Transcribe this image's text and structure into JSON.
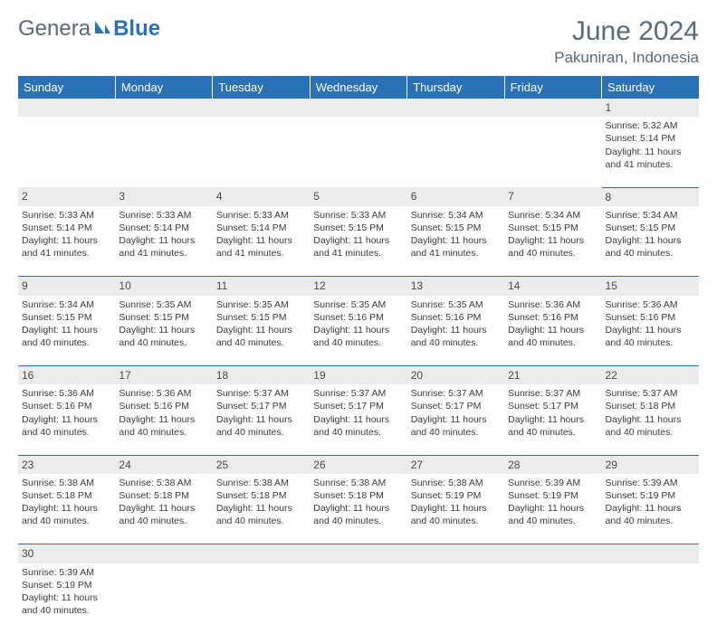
{
  "logo": {
    "text_gray": "Genera",
    "text_blue": "Blue"
  },
  "title": "June 2024",
  "location": "Pakuniran, Indonesia",
  "colors": {
    "header_bg": "#2a72b5",
    "header_text": "#ffffff",
    "daynum_bg": "#ececec",
    "text": "#3a3a3a",
    "title_text": "#5a6a78",
    "cell_border": "#2a72b5",
    "page_bg": "#ffffff"
  },
  "typography": {
    "title_fontsize": 30,
    "location_fontsize": 17,
    "dayhead_fontsize": 13,
    "cell_fontsize": 10.5
  },
  "day_headers": [
    "Sunday",
    "Monday",
    "Tuesday",
    "Wednesday",
    "Thursday",
    "Friday",
    "Saturday"
  ],
  "labels": {
    "sunrise_prefix": "Sunrise: ",
    "sunset_prefix": "Sunset: ",
    "daylight_prefix": "Daylight: "
  },
  "weeks": [
    [
      null,
      null,
      null,
      null,
      null,
      null,
      {
        "n": 1,
        "sunrise": "5:32 AM",
        "sunset": "5:14 PM",
        "daylight": "11 hours and 41 minutes."
      }
    ],
    [
      {
        "n": 2,
        "sunrise": "5:33 AM",
        "sunset": "5:14 PM",
        "daylight": "11 hours and 41 minutes."
      },
      {
        "n": 3,
        "sunrise": "5:33 AM",
        "sunset": "5:14 PM",
        "daylight": "11 hours and 41 minutes."
      },
      {
        "n": 4,
        "sunrise": "5:33 AM",
        "sunset": "5:14 PM",
        "daylight": "11 hours and 41 minutes."
      },
      {
        "n": 5,
        "sunrise": "5:33 AM",
        "sunset": "5:15 PM",
        "daylight": "11 hours and 41 minutes."
      },
      {
        "n": 6,
        "sunrise": "5:34 AM",
        "sunset": "5:15 PM",
        "daylight": "11 hours and 41 minutes."
      },
      {
        "n": 7,
        "sunrise": "5:34 AM",
        "sunset": "5:15 PM",
        "daylight": "11 hours and 40 minutes."
      },
      {
        "n": 8,
        "sunrise": "5:34 AM",
        "sunset": "5:15 PM",
        "daylight": "11 hours and 40 minutes."
      }
    ],
    [
      {
        "n": 9,
        "sunrise": "5:34 AM",
        "sunset": "5:15 PM",
        "daylight": "11 hours and 40 minutes."
      },
      {
        "n": 10,
        "sunrise": "5:35 AM",
        "sunset": "5:15 PM",
        "daylight": "11 hours and 40 minutes."
      },
      {
        "n": 11,
        "sunrise": "5:35 AM",
        "sunset": "5:15 PM",
        "daylight": "11 hours and 40 minutes."
      },
      {
        "n": 12,
        "sunrise": "5:35 AM",
        "sunset": "5:16 PM",
        "daylight": "11 hours and 40 minutes."
      },
      {
        "n": 13,
        "sunrise": "5:35 AM",
        "sunset": "5:16 PM",
        "daylight": "11 hours and 40 minutes."
      },
      {
        "n": 14,
        "sunrise": "5:36 AM",
        "sunset": "5:16 PM",
        "daylight": "11 hours and 40 minutes."
      },
      {
        "n": 15,
        "sunrise": "5:36 AM",
        "sunset": "5:16 PM",
        "daylight": "11 hours and 40 minutes."
      }
    ],
    [
      {
        "n": 16,
        "sunrise": "5:36 AM",
        "sunset": "5:16 PM",
        "daylight": "11 hours and 40 minutes."
      },
      {
        "n": 17,
        "sunrise": "5:36 AM",
        "sunset": "5:16 PM",
        "daylight": "11 hours and 40 minutes."
      },
      {
        "n": 18,
        "sunrise": "5:37 AM",
        "sunset": "5:17 PM",
        "daylight": "11 hours and 40 minutes."
      },
      {
        "n": 19,
        "sunrise": "5:37 AM",
        "sunset": "5:17 PM",
        "daylight": "11 hours and 40 minutes."
      },
      {
        "n": 20,
        "sunrise": "5:37 AM",
        "sunset": "5:17 PM",
        "daylight": "11 hours and 40 minutes."
      },
      {
        "n": 21,
        "sunrise": "5:37 AM",
        "sunset": "5:17 PM",
        "daylight": "11 hours and 40 minutes."
      },
      {
        "n": 22,
        "sunrise": "5:37 AM",
        "sunset": "5:18 PM",
        "daylight": "11 hours and 40 minutes."
      }
    ],
    [
      {
        "n": 23,
        "sunrise": "5:38 AM",
        "sunset": "5:18 PM",
        "daylight": "11 hours and 40 minutes."
      },
      {
        "n": 24,
        "sunrise": "5:38 AM",
        "sunset": "5:18 PM",
        "daylight": "11 hours and 40 minutes."
      },
      {
        "n": 25,
        "sunrise": "5:38 AM",
        "sunset": "5:18 PM",
        "daylight": "11 hours and 40 minutes."
      },
      {
        "n": 26,
        "sunrise": "5:38 AM",
        "sunset": "5:18 PM",
        "daylight": "11 hours and 40 minutes."
      },
      {
        "n": 27,
        "sunrise": "5:38 AM",
        "sunset": "5:19 PM",
        "daylight": "11 hours and 40 minutes."
      },
      {
        "n": 28,
        "sunrise": "5:39 AM",
        "sunset": "5:19 PM",
        "daylight": "11 hours and 40 minutes."
      },
      {
        "n": 29,
        "sunrise": "5:39 AM",
        "sunset": "5:19 PM",
        "daylight": "11 hours and 40 minutes."
      }
    ],
    [
      {
        "n": 30,
        "sunrise": "5:39 AM",
        "sunset": "5:19 PM",
        "daylight": "11 hours and 40 minutes."
      },
      null,
      null,
      null,
      null,
      null,
      null
    ]
  ]
}
